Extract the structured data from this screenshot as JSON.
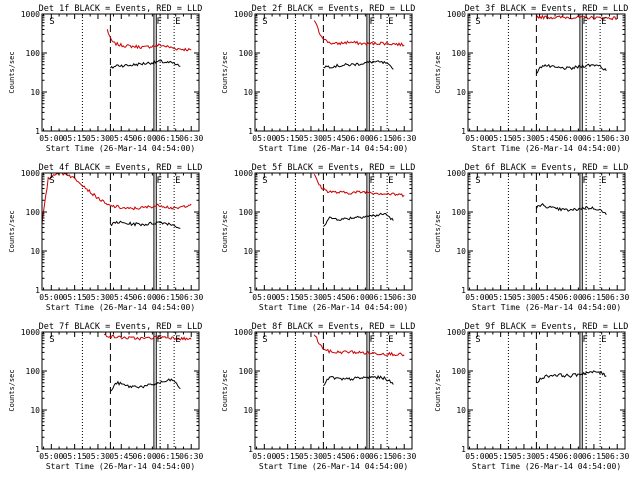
{
  "chart_data": [
    {
      "type": "line",
      "title": "Det 1f BLACK = Events, RED = LLD",
      "xlabel": "Start Time (26-Mar-14 04:54:00)",
      "ylabel": "Counts/sec",
      "x_ticks": [
        "05:00",
        "05:15",
        "05:30",
        "05:45",
        "06:00",
        "06:15",
        "06:30"
      ],
      "y_ticks": [
        "1",
        "10",
        "100",
        "1000"
      ],
      "x_range_min": [
        294,
        395
      ],
      "y_range": [
        1,
        1000
      ],
      "y_scale": "log",
      "markers": {
        "dotted": [
          320,
          370,
          379
        ],
        "dashed": 338,
        "solid": [
          366,
          367.5
        ],
        "labels": [
          {
            "text": "S",
            "x": 298
          },
          {
            "text": "F",
            "x": 367
          },
          {
            "text": "E",
            "x": 379
          }
        ]
      },
      "series": [
        {
          "color": "#cc0000",
          "x": [
            336,
            338,
            340,
            344,
            350,
            360,
            370,
            380,
            390
          ],
          "y": [
            400,
            230,
            180,
            160,
            150,
            140,
            160,
            130,
            120
          ]
        },
        {
          "color": "#000000",
          "x": [
            338,
            342,
            350,
            360,
            370,
            378,
            383
          ],
          "y": [
            40,
            48,
            48,
            54,
            60,
            55,
            45
          ]
        }
      ]
    },
    {
      "type": "line",
      "title": "Det 2f BLACK = Events, RED = LLD",
      "xlabel": "Start Time (26-Mar-14 04:54:00)",
      "ylabel": "Counts/sec",
      "x_ticks": [
        "05:00",
        "05:15",
        "05:30",
        "05:45",
        "06:00",
        "06:15",
        "06:30"
      ],
      "y_ticks": [
        "1",
        "10",
        "100",
        "1000"
      ],
      "x_range_min": [
        294,
        395
      ],
      "y_range": [
        1,
        1000
      ],
      "y_scale": "log",
      "markers": {
        "dotted": [
          320,
          370,
          379
        ],
        "dashed": 338,
        "solid": [
          366,
          367.5
        ],
        "labels": [
          {
            "text": "S",
            "x": 298
          },
          {
            "text": "F",
            "x": 367
          },
          {
            "text": "E",
            "x": 379
          }
        ]
      },
      "series": [
        {
          "color": "#cc0000",
          "x": [
            332,
            336,
            340,
            345,
            355,
            365,
            375,
            385,
            390
          ],
          "y": [
            700,
            300,
            200,
            170,
            190,
            170,
            180,
            170,
            160
          ]
        },
        {
          "color": "#000000",
          "x": [
            338,
            342,
            350,
            360,
            370,
            378,
            383
          ],
          "y": [
            45,
            45,
            48,
            52,
            60,
            55,
            38
          ]
        }
      ]
    },
    {
      "type": "line",
      "title": "Det 3f BLACK = Events, RED = LLD",
      "xlabel": "Start Time (26-Mar-14 04:54:00)",
      "ylabel": "Counts/sec",
      "x_ticks": [
        "05:00",
        "05:15",
        "05:30",
        "05:45",
        "06:00",
        "06:15",
        "06:30"
      ],
      "y_ticks": [
        "1",
        "10",
        "100",
        "1000"
      ],
      "x_range_min": [
        294,
        395
      ],
      "y_range": [
        1,
        1000
      ],
      "y_scale": "log",
      "markers": {
        "dotted": [
          320,
          370,
          379
        ],
        "dashed": 338,
        "solid": [
          366,
          367.5
        ],
        "labels": [
          {
            "text": "S",
            "x": 298
          },
          {
            "text": "F",
            "x": 367
          },
          {
            "text": "E",
            "x": 379
          }
        ]
      },
      "series": [
        {
          "color": "#cc0000",
          "x": [
            338,
            345,
            360,
            375,
            390
          ],
          "y": [
            850,
            820,
            820,
            800,
            780
          ]
        },
        {
          "color": "#000000",
          "x": [
            338,
            342,
            350,
            360,
            370,
            378,
            383
          ],
          "y": [
            30,
            50,
            42,
            40,
            48,
            50,
            35
          ]
        }
      ]
    },
    {
      "type": "line",
      "title": "Det 4f BLACK = Events, RED = LLD",
      "xlabel": "Start Time (26-Mar-14 04:54:00)",
      "ylabel": "Counts/sec",
      "x_ticks": [
        "05:00",
        "05:15",
        "05:30",
        "05:45",
        "06:00",
        "06:15",
        "06:30"
      ],
      "y_ticks": [
        "1",
        "10",
        "100",
        "1000"
      ],
      "x_range_min": [
        294,
        395
      ],
      "y_range": [
        1,
        1000
      ],
      "y_scale": "log",
      "markers": {
        "dotted": [
          320,
          370,
          379
        ],
        "dashed": 338,
        "solid": [
          366,
          367.5
        ],
        "labels": [
          {
            "text": "S",
            "x": 298
          },
          {
            "text": "F",
            "x": 367
          },
          {
            "text": "E",
            "x": 379
          }
        ]
      },
      "series": [
        {
          "color": "#cc0000",
          "x": [
            294,
            298,
            303,
            310,
            318,
            326,
            332,
            336,
            340,
            350,
            360,
            370,
            380,
            390
          ],
          "y": [
            50,
            700,
            1000,
            950,
            600,
            300,
            200,
            150,
            140,
            120,
            130,
            150,
            120,
            160
          ]
        },
        {
          "color": "#000000",
          "x": [
            338,
            342,
            350,
            360,
            370,
            378,
            383
          ],
          "y": [
            45,
            55,
            50,
            48,
            55,
            48,
            38
          ]
        }
      ]
    },
    {
      "type": "line",
      "title": "Det 5f BLACK = Events, RED = LLD",
      "xlabel": "Start Time (26-Mar-14 04:54:00)",
      "ylabel": "Counts/sec",
      "x_ticks": [
        "05:00",
        "05:15",
        "05:30",
        "05:45",
        "06:00",
        "06:15",
        "06:30"
      ],
      "y_ticks": [
        "1",
        "10",
        "100",
        "1000"
      ],
      "x_range_min": [
        294,
        395
      ],
      "y_range": [
        1,
        1000
      ],
      "y_scale": "log",
      "markers": {
        "dotted": [
          320,
          370,
          379
        ],
        "dashed": 338,
        "solid": [
          366,
          367.5
        ],
        "labels": [
          {
            "text": "S",
            "x": 298
          },
          {
            "text": "F",
            "x": 367
          },
          {
            "text": "E",
            "x": 379
          }
        ]
      },
      "series": [
        {
          "color": "#cc0000",
          "x": [
            332,
            336,
            340,
            345,
            355,
            365,
            375,
            385,
            390
          ],
          "y": [
            900,
            450,
            350,
            320,
            310,
            330,
            300,
            280,
            270
          ]
        },
        {
          "color": "#000000",
          "x": [
            338,
            342,
            350,
            360,
            370,
            378,
            383
          ],
          "y": [
            45,
            70,
            65,
            75,
            80,
            90,
            60
          ]
        }
      ]
    },
    {
      "type": "line",
      "title": "Det 6f BLACK = Events, RED = LLD",
      "xlabel": "Start Time (26-Mar-14 04:54:00)",
      "ylabel": "Counts/sec",
      "x_ticks": [
        "05:00",
        "05:15",
        "05:30",
        "05:45",
        "06:00",
        "06:15",
        "06:30"
      ],
      "y_ticks": [
        "1",
        "10",
        "100",
        "1000"
      ],
      "x_range_min": [
        294,
        395
      ],
      "y_range": [
        1,
        1000
      ],
      "y_scale": "log",
      "markers": {
        "dotted": [
          320,
          370,
          379
        ],
        "dashed": 338,
        "solid": [
          366,
          367.5
        ],
        "labels": [
          {
            "text": "S",
            "x": 298
          },
          {
            "text": "F",
            "x": 367
          },
          {
            "text": "E",
            "x": 379
          }
        ]
      },
      "series": [
        {
          "color": "#000000",
          "x": [
            338,
            342,
            350,
            360,
            370,
            378,
            383
          ],
          "y": [
            130,
            150,
            120,
            110,
            130,
            120,
            85
          ]
        }
      ]
    },
    {
      "type": "line",
      "title": "Det 7f BLACK = Events, RED = LLD",
      "xlabel": "Start Time (26-Mar-14 04:54:00)",
      "ylabel": "Counts/sec",
      "x_ticks": [
        "05:00",
        "05:15",
        "05:30",
        "05:45",
        "06:00",
        "06:15",
        "06:30"
      ],
      "y_ticks": [
        "1",
        "10",
        "100",
        "1000"
      ],
      "x_range_min": [
        294,
        395
      ],
      "y_range": [
        1,
        1000
      ],
      "y_scale": "log",
      "markers": {
        "dotted": [
          320,
          370,
          379
        ],
        "dashed": 338,
        "solid": [
          366,
          367.5
        ],
        "labels": [
          {
            "text": "S",
            "x": 298
          },
          {
            "text": "F",
            "x": 367
          },
          {
            "text": "E",
            "x": 379
          }
        ]
      },
      "series": [
        {
          "color": "#cc0000",
          "x": [
            334,
            340,
            350,
            360,
            370,
            380,
            390
          ],
          "y": [
            850,
            750,
            700,
            680,
            750,
            700,
            650
          ]
        },
        {
          "color": "#000000",
          "x": [
            338,
            342,
            350,
            360,
            370,
            378,
            383
          ],
          "y": [
            30,
            50,
            40,
            40,
            50,
            60,
            35
          ]
        }
      ]
    },
    {
      "type": "line",
      "title": "Det 8f BLACK = Events, RED = LLD",
      "xlabel": "Start Time (26-Mar-14 04:54:00)",
      "ylabel": "Counts/sec",
      "x_ticks": [
        "05:00",
        "05:15",
        "05:30",
        "05:45",
        "06:00",
        "06:15",
        "06:30"
      ],
      "y_ticks": [
        "1",
        "10",
        "100",
        "1000"
      ],
      "x_range_min": [
        294,
        395
      ],
      "y_range": [
        1,
        1000
      ],
      "y_scale": "log",
      "markers": {
        "dotted": [
          320,
          370,
          379
        ],
        "dashed": 338,
        "solid": [
          366,
          367.5
        ],
        "labels": [
          {
            "text": "S",
            "x": 298
          },
          {
            "text": "F",
            "x": 367
          },
          {
            "text": "E",
            "x": 379
          }
        ]
      },
      "series": [
        {
          "color": "#cc0000",
          "x": [
            332,
            336,
            340,
            345,
            355,
            365,
            375,
            385,
            390
          ],
          "y": [
            900,
            450,
            330,
            300,
            310,
            290,
            280,
            270,
            260
          ]
        },
        {
          "color": "#000000",
          "x": [
            338,
            342,
            350,
            360,
            370,
            378,
            383
          ],
          "y": [
            40,
            70,
            60,
            65,
            70,
            65,
            45
          ]
        }
      ]
    },
    {
      "type": "line",
      "title": "Det 9f BLACK = Events, RED = LLD",
      "xlabel": "Start Time (26-Mar-14 04:54:00)",
      "ylabel": "Counts/sec",
      "x_ticks": [
        "05:00",
        "05:15",
        "05:30",
        "05:45",
        "06:00",
        "06:15",
        "06:30"
      ],
      "y_ticks": [
        "1",
        "10",
        "100",
        "1000"
      ],
      "x_range_min": [
        294,
        395
      ],
      "y_range": [
        1,
        1000
      ],
      "y_scale": "log",
      "markers": {
        "dotted": [
          320,
          370,
          379
        ],
        "dashed": 338,
        "solid": [
          366,
          367.5
        ],
        "labels": [
          {
            "text": "S",
            "x": 298
          },
          {
            "text": "F",
            "x": 367
          },
          {
            "text": "E",
            "x": 379
          }
        ]
      },
      "series": [
        {
          "color": "#000000",
          "x": [
            338,
            342,
            350,
            360,
            370,
            378,
            383
          ],
          "y": [
            50,
            70,
            80,
            75,
            90,
            95,
            75
          ]
        }
      ]
    }
  ]
}
